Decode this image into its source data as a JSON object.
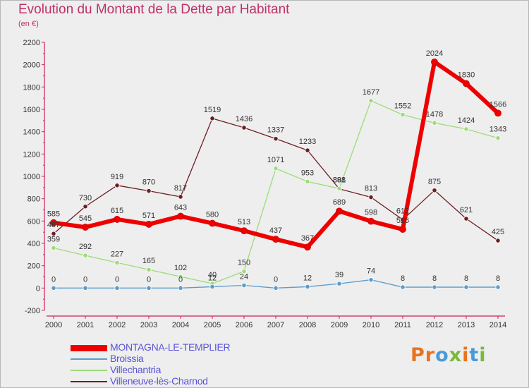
{
  "title": "Evolution du Montant de la Dette par Habitant",
  "subtitle": "(en €)",
  "logo": {
    "text": "Proxiti",
    "colors": [
      "#e8731e",
      "#e8731e",
      "#4a9ad8",
      "#7ab83c",
      "#e8731e",
      "#4a9ad8",
      "#7ab83c"
    ]
  },
  "chart_data": {
    "type": "line",
    "x": [
      "2000",
      "2001",
      "2002",
      "2003",
      "2004",
      "2005",
      "2006",
      "2007",
      "2008",
      "2009",
      "2010",
      "2011",
      "2012",
      "2013",
      "2014"
    ],
    "ylim": [
      -200,
      2200
    ],
    "yticks": [
      "-200",
      "0",
      "200",
      "400",
      "600",
      "800",
      "1000",
      "1200",
      "1400",
      "1600",
      "1800",
      "2000",
      "2200"
    ],
    "grid": false,
    "legend_position": "bottom-left",
    "series": [
      {
        "name": "Villeneuve-lès-Charnod",
        "color": "#6b1f24",
        "width": 1.3,
        "values": [
          487,
          730,
          919,
          870,
          817,
          1519,
          1436,
          1337,
          1233,
          888,
          813,
          612,
          875,
          621,
          425
        ],
        "labels": [
          "487",
          "730",
          "919",
          "870",
          "817",
          "1519",
          "1436",
          "1337",
          "1233",
          "888",
          "813",
          "612",
          "875",
          "621",
          "425"
        ]
      },
      {
        "name": "Villechantria",
        "color": "#9ddc78",
        "width": 1.3,
        "values": [
          359,
          292,
          227,
          165,
          102,
          40,
          150,
          1071,
          953,
          891,
          1677,
          1552,
          1478,
          1424,
          1343
        ],
        "labels": [
          "359",
          "292",
          "227",
          "165",
          "102",
          "40",
          "150",
          "1071",
          "953",
          "891",
          "1677",
          "1552",
          "1478",
          "1424",
          "1343"
        ]
      },
      {
        "name": "Broissia",
        "color": "#5a9ccc",
        "width": 1.3,
        "values": [
          0,
          0,
          0,
          0,
          0,
          12,
          24,
          0,
          12,
          39,
          74,
          8,
          8,
          8,
          8
        ],
        "labels": [
          "0",
          "0",
          "0",
          "0",
          "0",
          "12",
          "24",
          "0",
          "12",
          "39",
          "74",
          "8",
          "8",
          "8",
          "8"
        ]
      },
      {
        "name": "MONTAGNA-LE-TEMPLIER",
        "color": "#ee0000",
        "width": 6,
        "values": [
          585,
          545,
          615,
          571,
          643,
          580,
          513,
          437,
          367,
          689,
          598,
          526,
          2024,
          1830,
          1566
        ],
        "labels": [
          "585",
          "545",
          "615",
          "571",
          "643",
          "580",
          "513",
          "437",
          "367",
          "689",
          "598",
          "526",
          "2024",
          "1830",
          "1566"
        ]
      }
    ],
    "legend": [
      {
        "name": "MONTAGNA-LE-TEMPLIER",
        "color": "#ee0000",
        "thickness": 9,
        "text_color": "#5a54d6"
      },
      {
        "name": "Broissia",
        "color": "#5a9ccc",
        "thickness": 2,
        "text_color": "#5a54d6"
      },
      {
        "name": "Villechantria",
        "color": "#9ddc78",
        "thickness": 2,
        "text_color": "#5a54d6"
      },
      {
        "name": "Villeneuve-lès-Charnod",
        "color": "#6b1f24",
        "thickness": 2,
        "text_color": "#5a54d6"
      }
    ]
  }
}
